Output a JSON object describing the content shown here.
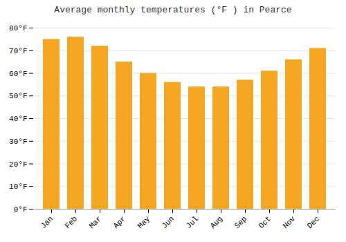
{
  "chart_data": {
    "type": "bar",
    "title": "Average monthly temperatures (°F ) in Pearce",
    "categories": [
      "Jan",
      "Feb",
      "Mar",
      "Apr",
      "May",
      "Jun",
      "Jul",
      "Aug",
      "Sep",
      "Oct",
      "Nov",
      "Dec"
    ],
    "values": [
      75,
      76,
      72,
      65,
      60,
      56,
      54,
      54,
      57,
      61,
      66,
      71
    ],
    "color": "#F5A623",
    "ylim": [
      0,
      80
    ],
    "yticks": [
      {
        "value": 0,
        "label": "0°F"
      },
      {
        "value": 10,
        "label": "10°F"
      },
      {
        "value": 20,
        "label": "20°F"
      },
      {
        "value": 30,
        "label": "30°F"
      },
      {
        "value": 40,
        "label": "40°F"
      },
      {
        "value": 50,
        "label": "50°F"
      },
      {
        "value": 60,
        "label": "60°F"
      },
      {
        "value": 70,
        "label": "70°F"
      },
      {
        "value": 80,
        "label": "80°F"
      }
    ],
    "grid": true
  }
}
